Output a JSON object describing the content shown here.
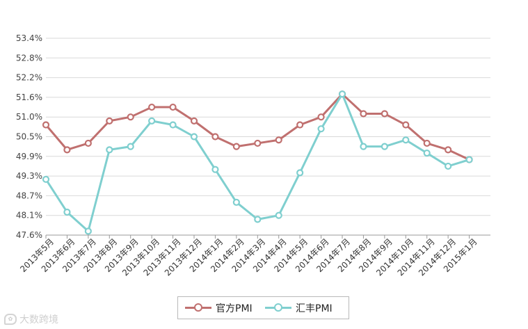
{
  "chart_data": {
    "type": "line",
    "categories": [
      "2013年5月",
      "2013年6月",
      "2013年7月",
      "2013年8月",
      "2013年9月",
      "2013年10月",
      "2013年11月",
      "2013年12月",
      "2014年1月",
      "2014年2月",
      "2014年3月",
      "2014年4月",
      "2014年5月",
      "2014年6月",
      "2014年7月",
      "2014年8月",
      "2014年9月",
      "2014年10月",
      "2014年11月",
      "2014年12月",
      "2015年1月"
    ],
    "y_ticks": [
      "47.6%",
      "48.1%",
      "48.7%",
      "49.3%",
      "49.9%",
      "50.5%",
      "51.0%",
      "51.6%",
      "52.2%",
      "52.8%",
      "53.4%"
    ],
    "ylim": [
      47.6,
      53.4
    ],
    "grid": true,
    "legend_position": "bottom",
    "series": [
      {
        "name": "官方PMI",
        "color": "#c0706f",
        "values": [
          50.8,
          50.1,
          50.3,
          50.9,
          51.0,
          51.3,
          51.3,
          50.9,
          50.5,
          50.2,
          50.3,
          50.4,
          50.8,
          51.0,
          51.7,
          51.1,
          51.1,
          50.8,
          50.3,
          50.1,
          49.8
        ]
      },
      {
        "name": "汇丰PMI",
        "color": "#7fcfcf",
        "values": [
          49.2,
          48.2,
          47.7,
          50.1,
          50.2,
          50.9,
          50.8,
          50.5,
          49.5,
          48.5,
          48.0,
          48.1,
          49.4,
          50.7,
          51.7,
          50.2,
          50.2,
          50.4,
          50.0,
          49.6,
          49.8
        ]
      }
    ]
  },
  "watermark": {
    "text": "大数跨境",
    "icon": "chat-bubble-icon"
  }
}
